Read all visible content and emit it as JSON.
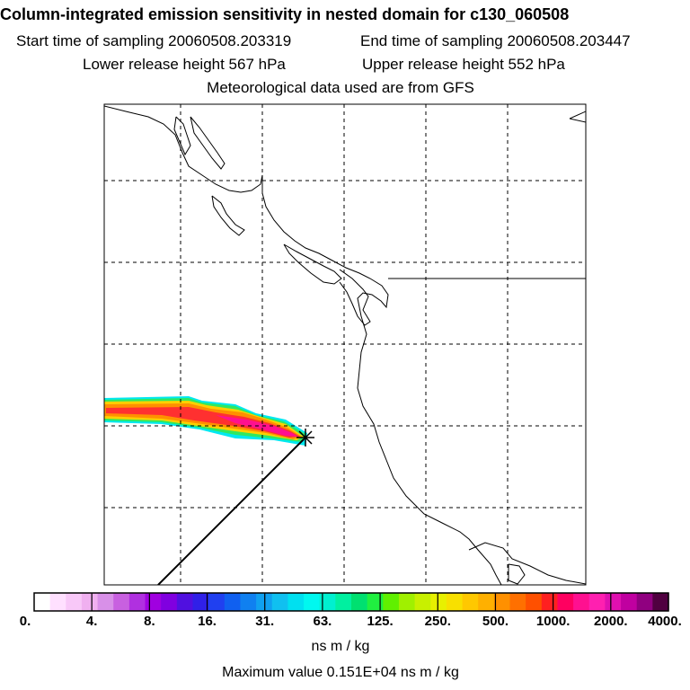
{
  "header": {
    "title": "Column-integrated emission sensitivity in nested domain for c130_060508",
    "start_time": "Start time of sampling 20060508.203319",
    "end_time": "End time of sampling 20060508.203447",
    "lower_release": "Lower release height  567 hPa",
    "upper_release": "Upper release height  552 hPa",
    "met_data": "Meteorological data used are from GFS"
  },
  "colorbar": {
    "ticks": [
      "0.",
      "4.",
      "8.",
      "16.",
      "31.",
      "63.",
      "125.",
      "250.",
      "500.",
      "1000.",
      "2000.",
      "4000."
    ],
    "colors": [
      "#ffffff",
      "#ffe0ff",
      "#f8c8f8",
      "#f0b0f0",
      "#d890e8",
      "#c860e0",
      "#b030e0",
      "#a000e0",
      "#8000e0",
      "#5010e0",
      "#3020e8",
      "#2040f0",
      "#1060f0",
      "#1080f0",
      "#10a0f0",
      "#10c0f0",
      "#00e0f0",
      "#00f8f0",
      "#00f0d0",
      "#00f0a0",
      "#00e070",
      "#20f040",
      "#60f000",
      "#a0f000",
      "#c8f000",
      "#e8f000",
      "#f8e000",
      "#ffc800",
      "#ffb000",
      "#ff9000",
      "#ff7000",
      "#ff5000",
      "#ff2020",
      "#ff0060",
      "#ff1090",
      "#ff20b0",
      "#e010b0",
      "#c000a0",
      "#900080",
      "#500040"
    ],
    "units": "ns m / kg",
    "max_value": "Maximum value  0.151E+04 ns m / kg"
  }
}
